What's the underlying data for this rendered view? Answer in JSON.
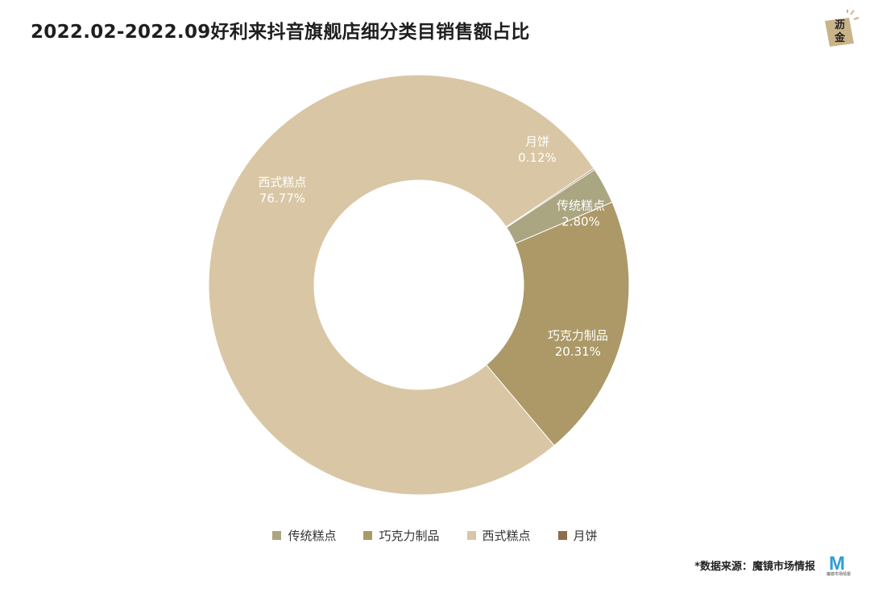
{
  "header": {
    "title": "2022.02-2022.09好利来抖音旗舰店细分类目销售额占比"
  },
  "brand": {
    "logo_text": "沥金",
    "logo_line1": "沥",
    "logo_line2": "金"
  },
  "chart_data": {
    "type": "pie",
    "donut": true,
    "title": "2022.02-2022.09好利来抖音旗舰店细分类目销售额占比",
    "legend_position": "bottom",
    "slices": [
      {
        "name": "月饼",
        "value": 0.12,
        "label": "0.12%",
        "color": "#8e6d4a"
      },
      {
        "name": "传统糕点",
        "value": 2.8,
        "label": "2.80%",
        "color": "#aba682"
      },
      {
        "name": "巧克力制品",
        "value": 20.31,
        "label": "20.31%",
        "color": "#ac9967"
      },
      {
        "name": "西式糕点",
        "value": 76.77,
        "label": "76.77%",
        "color": "#d9c6a4"
      }
    ],
    "legend": [
      {
        "name": "传统糕点",
        "color": "#aba682"
      },
      {
        "name": "巧克力制品",
        "color": "#ac9967"
      },
      {
        "name": "西式糕点",
        "color": "#d9c6a4"
      },
      {
        "name": "月饼",
        "color": "#8e6d4a"
      }
    ]
  },
  "footer": {
    "source": "*数据来源：魔镜市场情报",
    "source_logo": "M",
    "source_logo_sub": "魔镜市场情报"
  }
}
